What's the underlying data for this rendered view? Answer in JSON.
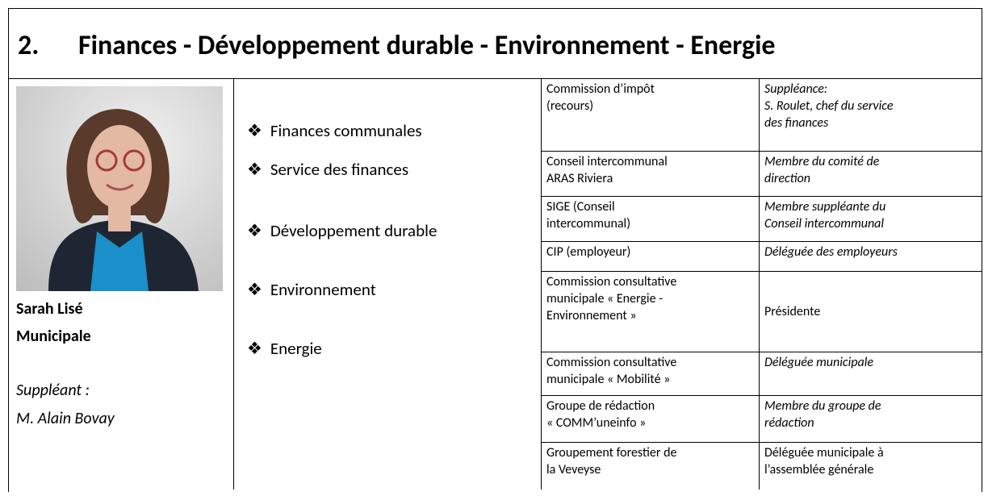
{
  "header": {
    "number": "2.",
    "title": "Finances - Développement durable - Environnement - Energie"
  },
  "person": {
    "name": "Sarah Lisé",
    "role": "Municipale",
    "substitute_label": "Suppléant :",
    "substitute_name": "M. Alain Bovay"
  },
  "domains": [
    "Finances communales",
    "Service des finances",
    "Développement durable",
    "Environnement",
    "Energie"
  ],
  "table": {
    "rows": [
      [
        [
          "Commission d’impôt",
          "(recours)"
        ],
        [
          "Suppléance:",
          "S. Roulet, chef du service",
          "des finances"
        ]
      ],
      [
        [
          "Conseil intercommunal",
          "ARAS Riviera"
        ],
        [
          "Membre du comité de",
          "direction"
        ]
      ],
      [
        [
          "SIGE (Conseil",
          "intercommunal)"
        ],
        [
          "Membre suppléante du",
          "Conseil intercommunal"
        ]
      ],
      [
        [
          "CIP (employeur)"
        ],
        [
          "Déléguée des employeurs"
        ]
      ],
      [
        [
          "Commission consultative",
          "municipale « Energie -",
          "Environnement »"
        ],
        [
          "Présidente"
        ]
      ],
      [
        [
          "Commission consultative",
          "municipale « Mobilité »"
        ],
        [
          "Déléguée municipale"
        ]
      ],
      [
        [
          "Groupe de rédaction",
          "« COMM’uneinfo »"
        ],
        [
          "Membre du groupe de",
          "rédaction"
        ]
      ],
      [
        [
          "Groupement forestier de",
          "la Veveyse"
        ],
        [
          "Déléguée municipale à",
          "l’assemblée générale"
        ]
      ]
    ]
  }
}
